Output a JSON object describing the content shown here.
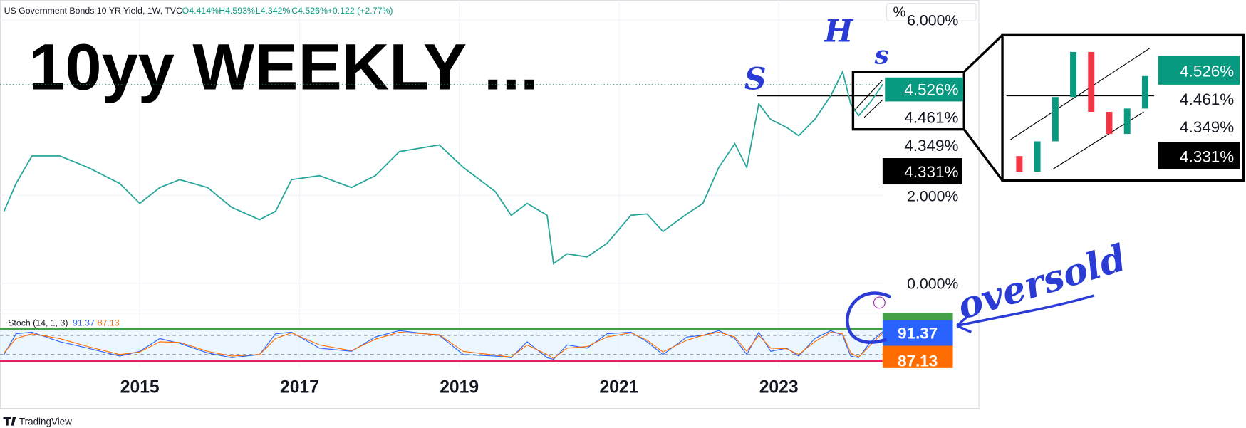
{
  "header": {
    "symbol": "US Government Bonds 10 YR Yield, 1W, TVC",
    "open": "O4.414%",
    "high": "H4.593%",
    "low": "L4.342%",
    "close": "C4.526%",
    "change": "+0.122 (+2.77%)"
  },
  "axis_unit": "%",
  "chart_data": [
    {
      "type": "line",
      "title": "10yy WEEKLY ...",
      "x": [
        2013.3,
        2013.45,
        2013.65,
        2014.0,
        2014.35,
        2014.75,
        2015.0,
        2015.25,
        2015.5,
        2015.85,
        2016.15,
        2016.5,
        2016.7,
        2016.9,
        2017.25,
        2017.65,
        2017.95,
        2018.25,
        2018.75,
        2019.05,
        2019.45,
        2019.65,
        2019.85,
        2020.1,
        2020.18,
        2020.35,
        2020.6,
        2020.85,
        2021.15,
        2021.35,
        2021.55,
        2021.85,
        2022.05,
        2022.25,
        2022.45,
        2022.6,
        2022.75,
        2022.9,
        2023.1,
        2023.25,
        2023.45,
        2023.65,
        2023.8,
        2023.9,
        2024.0,
        2024.15,
        2024.3
      ],
      "values": [
        1.64,
        2.27,
        2.9,
        2.9,
        2.64,
        2.27,
        1.82,
        2.18,
        2.36,
        2.18,
        1.73,
        1.45,
        1.64,
        2.36,
        2.45,
        2.18,
        2.45,
        3.0,
        3.15,
        2.64,
        2.09,
        1.55,
        1.82,
        1.55,
        0.45,
        0.67,
        0.6,
        0.91,
        1.55,
        1.58,
        1.18,
        1.58,
        1.82,
        2.64,
        3.18,
        2.64,
        4.09,
        3.73,
        3.55,
        3.36,
        3.73,
        4.27,
        4.82,
        4.09,
        3.82,
        4.13,
        4.526
      ],
      "color": "#26a69a",
      "xlim": [
        2013.25,
        2024.35
      ],
      "xticks": [
        2015,
        2017,
        2019,
        2021,
        2023
      ],
      "ylim": [
        -0.64,
        6.36
      ],
      "yticks": [
        {
          "value": 0,
          "label": "0.000%"
        },
        {
          "value": 2,
          "label": "2.000%"
        },
        {
          "value": 6,
          "label": "6.000%"
        }
      ],
      "grid": true,
      "price_labels": [
        "4.526%",
        "4.461%",
        "4.349%",
        "4.331%"
      ],
      "annotations": [
        "S",
        "H",
        "s",
        "oversold"
      ]
    },
    {
      "type": "line",
      "title": "Stoch (14, 1, 3)",
      "x": [
        2013.3,
        2013.45,
        2013.65,
        2014.0,
        2014.35,
        2014.75,
        2015.0,
        2015.25,
        2015.5,
        2015.85,
        2016.15,
        2016.5,
        2016.7,
        2016.9,
        2017.25,
        2017.65,
        2017.95,
        2018.25,
        2018.75,
        2019.05,
        2019.45,
        2019.65,
        2019.85,
        2020.1,
        2020.18,
        2020.35,
        2020.6,
        2020.85,
        2021.15,
        2021.35,
        2021.55,
        2021.85,
        2022.05,
        2022.25,
        2022.45,
        2022.6,
        2022.75,
        2022.9,
        2023.1,
        2023.25,
        2023.45,
        2023.65,
        2023.8,
        2023.9,
        2024.0,
        2024.15,
        2024.3
      ],
      "series": [
        {
          "color": "#2962ff",
          "values": [
            20,
            85,
            90,
            60,
            40,
            15,
            30,
            70,
            55,
            25,
            10,
            20,
            85,
            90,
            40,
            30,
            75,
            95,
            80,
            20,
            15,
            10,
            60,
            10,
            5,
            50,
            40,
            85,
            90,
            60,
            20,
            75,
            80,
            95,
            70,
            20,
            90,
            30,
            40,
            15,
            70,
            95,
            80,
            15,
            10,
            60,
            91.37
          ]
        },
        {
          "color": "#ff6d00",
          "values": [
            25,
            70,
            85,
            70,
            45,
            20,
            28,
            60,
            58,
            30,
            15,
            20,
            70,
            88,
            50,
            32,
            68,
            90,
            82,
            30,
            18,
            12,
            50,
            20,
            8,
            40,
            45,
            75,
            88,
            65,
            28,
            65,
            80,
            90,
            75,
            30,
            80,
            40,
            38,
            20,
            60,
            90,
            85,
            25,
            12,
            50,
            87.13
          ]
        }
      ],
      "ylim": [
        0,
        100
      ],
      "band": [
        20,
        80
      ]
    }
  ],
  "footer": "TradingView"
}
